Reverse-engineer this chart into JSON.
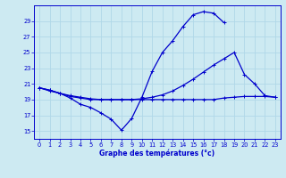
{
  "bg_color": "#cdeaf2",
  "grid_color": "#b0d8e8",
  "line_color": "#0000cc",
  "xlabel": "Graphe des températures (°c)",
  "ylim": [
    14.0,
    31.0
  ],
  "yticks": [
    15,
    17,
    19,
    21,
    23,
    25,
    27,
    29
  ],
  "xlim": [
    -0.5,
    23.5
  ],
  "xticks": [
    0,
    1,
    2,
    3,
    4,
    5,
    6,
    7,
    8,
    9,
    10,
    11,
    12,
    13,
    14,
    15,
    16,
    17,
    18,
    19,
    20,
    21,
    22,
    23
  ],
  "curve1_x": [
    0,
    1,
    2,
    3,
    4,
    5,
    6,
    7,
    8,
    9,
    10,
    11,
    12,
    13,
    14,
    15,
    16,
    17,
    18
  ],
  "curve1_y": [
    20.5,
    20.2,
    19.8,
    19.2,
    18.4,
    18.0,
    17.3,
    16.5,
    15.1,
    16.6,
    19.3,
    22.6,
    25.0,
    26.5,
    28.3,
    29.8,
    30.2,
    30.0,
    28.8
  ],
  "curve2_x": [
    0,
    1,
    2,
    3,
    4,
    5,
    6,
    7,
    8,
    9,
    10,
    11,
    12,
    13,
    14,
    15,
    16,
    17,
    18,
    19,
    20,
    21,
    22,
    23
  ],
  "curve2_y": [
    20.5,
    20.1,
    19.8,
    19.5,
    19.3,
    19.1,
    19.0,
    19.0,
    19.0,
    19.0,
    19.1,
    19.3,
    19.6,
    20.1,
    20.8,
    21.6,
    22.5,
    23.4,
    24.2,
    25.0,
    22.2,
    21.0,
    19.5,
    19.3
  ],
  "curve3_x": [
    0,
    1,
    2,
    3,
    4,
    5,
    6,
    7,
    8,
    9,
    10,
    11,
    12,
    13,
    14,
    15,
    16,
    17,
    18,
    19,
    20,
    21,
    22,
    23
  ],
  "curve3_y": [
    20.5,
    20.2,
    19.8,
    19.4,
    19.2,
    19.0,
    19.0,
    19.0,
    19.0,
    19.0,
    19.0,
    19.0,
    19.0,
    19.0,
    19.0,
    19.0,
    19.0,
    19.0,
    19.2,
    19.3,
    19.4,
    19.4,
    19.4,
    19.3
  ]
}
